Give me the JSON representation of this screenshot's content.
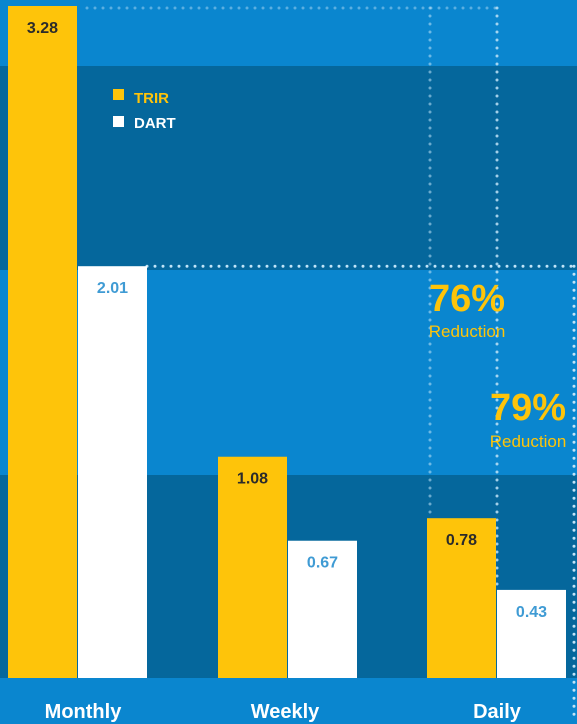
{
  "colors": {
    "band_light": "#0a86cf",
    "band_dark": "#05679c",
    "trir": "#fec40a",
    "dart": "#ffffff",
    "trir_label": "#2b2b2b",
    "dart_label": "#3f9bd4",
    "category_label": "#ffffff",
    "annotation": "#fec40a",
    "dots": "#bfe3f7"
  },
  "chart_data": {
    "type": "bar",
    "categories": [
      "Monthly",
      "Weekly",
      "Daily"
    ],
    "series": [
      {
        "name": "TRIR",
        "values": [
          3.28,
          1.08,
          0.78
        ],
        "labels": [
          "3.28",
          "1.08",
          "0.78"
        ]
      },
      {
        "name": "DART",
        "values": [
          2.01,
          0.67,
          0.43
        ],
        "labels": [
          "2.01",
          "0.67",
          "0.43"
        ]
      }
    ],
    "ylim": [
      0,
      3.28
    ],
    "legend_position": "top-left",
    "annotations": [
      {
        "value": "76%",
        "text": "Reduction"
      },
      {
        "value": "79%",
        "text": "Reduction"
      }
    ]
  }
}
